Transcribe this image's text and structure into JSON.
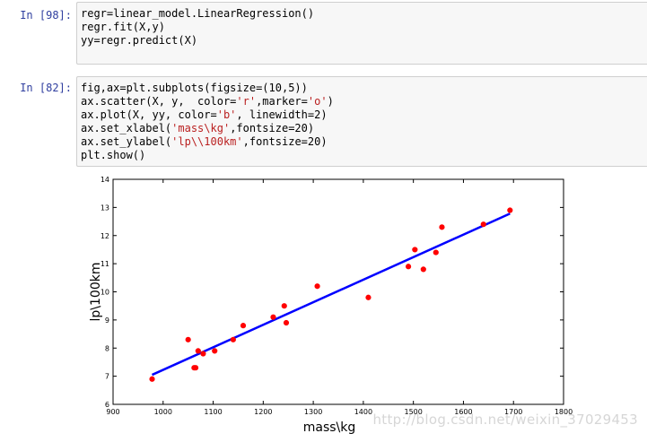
{
  "cells": [
    {
      "prompt": "In [98]:",
      "lines": [
        [
          {
            "t": "regr=linear_model.LinearRegression()",
            "s": ""
          }
        ],
        [
          {
            "t": "regr.fit(X,y)",
            "s": ""
          }
        ],
        [
          {
            "t": "yy=regr.predict(X)",
            "s": ""
          }
        ]
      ]
    },
    {
      "prompt": "In [82]:",
      "lines": [
        [
          {
            "t": "fig,ax=plt.subplots(figsize=(10,5))",
            "s": ""
          }
        ],
        [
          {
            "t": "ax.scatter(X, y,  color=",
            "s": ""
          },
          {
            "t": "'r'",
            "s": "str"
          },
          {
            "t": ",marker=",
            "s": ""
          },
          {
            "t": "'o'",
            "s": "str"
          },
          {
            "t": ")",
            "s": ""
          }
        ],
        [
          {
            "t": "ax.plot(X, yy, color=",
            "s": ""
          },
          {
            "t": "'b'",
            "s": "str"
          },
          {
            "t": ", linewidth=2)",
            "s": ""
          }
        ],
        [
          {
            "t": "ax.set_xlabel(",
            "s": ""
          },
          {
            "t": "'mass\\kg'",
            "s": "str"
          },
          {
            "t": ",fontsize=20)",
            "s": ""
          }
        ],
        [
          {
            "t": "ax.set_ylabel(",
            "s": ""
          },
          {
            "t": "'lp\\\\100km'",
            "s": "str"
          },
          {
            "t": ",fontsize=20)",
            "s": ""
          }
        ],
        [
          {
            "t": "plt.show()",
            "s": ""
          }
        ]
      ]
    }
  ],
  "chart_data": {
    "type": "scatter",
    "title": "",
    "xlabel": "mass\\kg",
    "ylabel": "lp\\100km",
    "xlim": [
      900,
      1800
    ],
    "ylim": [
      6,
      14
    ],
    "xticks": [
      900,
      1000,
      1100,
      1200,
      1300,
      1400,
      1500,
      1600,
      1700,
      1800
    ],
    "yticks": [
      6,
      7,
      8,
      9,
      10,
      11,
      12,
      13,
      14
    ],
    "grid": false,
    "points": {
      "color": "#ff0000",
      "x": [
        978,
        1050,
        1062,
        1065,
        1070,
        1080,
        1103,
        1140,
        1160,
        1220,
        1242,
        1246,
        1308,
        1410,
        1490,
        1503,
        1520,
        1545,
        1557,
        1640,
        1693
      ],
      "y": [
        6.9,
        8.3,
        7.3,
        7.3,
        7.9,
        7.8,
        7.9,
        8.3,
        8.8,
        9.1,
        9.5,
        8.9,
        10.2,
        9.8,
        10.9,
        11.5,
        10.8,
        11.4,
        12.3,
        12.4,
        12.9
      ]
    },
    "fit_line": {
      "color": "#0000ff",
      "x": [
        978,
        1693
      ],
      "y": [
        7.05,
        12.78
      ]
    }
  },
  "watermark": "http://blog.csdn.net/weixin_37029453"
}
